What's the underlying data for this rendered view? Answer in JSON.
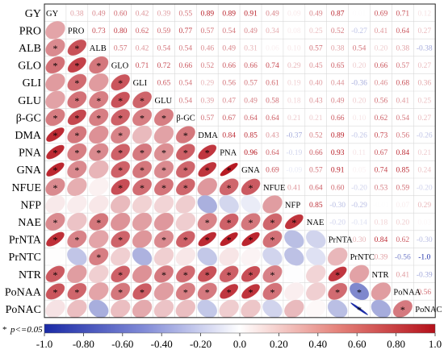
{
  "chart_data": {
    "type": "heatmap",
    "variables": [
      "GY",
      "PRO",
      "ALB",
      "GLO",
      "GLI",
      "GLU",
      "β-GC",
      "DMA",
      "PNA",
      "GNA",
      "NFUE",
      "NFP",
      "NAE",
      "PrNTA",
      "PrNTC",
      "NTR",
      "PoNAA",
      "PoNAC"
    ],
    "upper_values": {
      "GY": {
        "PRO": "0.38",
        "ALB": "0.49",
        "GLO": "0.60",
        "GLI": "0.42",
        "GLU": "0.39",
        "β-GC": "0.55",
        "DMA": "0.89",
        "PNA": "0.89",
        "GNA": "0.91",
        "NFUE": "0.49",
        "NFP": "0.09",
        "NAE": "0.49",
        "PrNTA": "0.87",
        "PrNTC": "0.01",
        "NTR": "0.69",
        "PoNAA": "0.71",
        "PoNAC": "0.12"
      },
      "PRO": {
        "ALB": "0.73",
        "GLO": "0.80",
        "GLI": "0.62",
        "GLU": "0.59",
        "β-GC": "0.77",
        "DMA": "0.57",
        "PNA": "0.54",
        "GNA": "0.49",
        "NFUE": "0.34",
        "NFP": "0.08",
        "NAE": "0.25",
        "PrNTA": "0.52",
        "PrNTC": "-0.27",
        "NTR": "0.41",
        "PoNAA": "0.64",
        "PoNAC": "0.27"
      },
      "ALB": {
        "GLO": "0.57",
        "GLI": "0.42",
        "GLU": "0.54",
        "β-GC": "0.54",
        "DMA": "0.46",
        "PNA": "0.49",
        "GNA": "0.31",
        "NFUE": "0.06",
        "NFP": "0.10",
        "NAE": "0.57",
        "PrNTA": "0.38",
        "PrNTC": "0.54",
        "NTR": "0.20",
        "PoNAA": "0.38",
        "PoNAC": "-0.38"
      },
      "GLO": {
        "GLI": "0.71",
        "GLU": "0.72",
        "β-GC": "0.66",
        "DMA": "0.52",
        "PNA": "0.66",
        "GNA": "0.66",
        "NFUE": "0.74",
        "NFP": "0.29",
        "NAE": "0.45",
        "PrNTA": "0.65",
        "PrNTC": "0.20",
        "NTR": "0.66",
        "PoNAA": "0.57",
        "PoNAC": "0.27"
      },
      "GLI": {
        "GLU": "0.65",
        "β-GC": "0.54",
        "DMA": "0.29",
        "PNA": "0.56",
        "GNA": "0.57",
        "NFUE": "0.61",
        "NFP": "0.19",
        "NAE": "0.40",
        "PrNTA": "0.44",
        "PrNTC": "-0.36",
        "NTR": "0.46",
        "PoNAA": "0.68",
        "PoNAC": "0.36"
      },
      "GLU": {
        "β-GC": "0.54",
        "DMA": "0.39",
        "PNA": "0.47",
        "GNA": "0.49",
        "NFUE": "0.58",
        "NFP": "0.18",
        "NAE": "0.43",
        "PrNTA": "0.49",
        "PrNTC": "0.20",
        "NTR": "0.56",
        "PoNAA": "0.41",
        "PoNAC": "0.25"
      },
      "β-GC": {
        "DMA": "0.57",
        "PNA": "0.67",
        "GNA": "0.64",
        "NFUE": "0.64",
        "NFP": "0.21",
        "NAE": "0.21",
        "PrNTA": "0.66",
        "PrNTC": "0.10",
        "NTR": "0.62",
        "PoNAA": "0.54",
        "PoNAC": "0.27"
      },
      "DMA": {
        "PNA": "0.84",
        "GNA": "0.85",
        "NFUE": "0.43",
        "NFP": "-0.37",
        "NAE": "0.52",
        "PrNTA": "0.89",
        "PrNTC": "-0.26",
        "NTR": "0.73",
        "PoNAA": "0.56",
        "PoNAC": "-0.26"
      },
      "PNA": {
        "GNA": "0.96",
        "NFUE": "0.64",
        "NFP": "-0.19",
        "NAE": "0.66",
        "PrNTA": "0.93",
        "PrNTC": "0.11",
        "NTR": "0.67",
        "PoNAA": "0.84",
        "PoNAC": "0.21"
      },
      "GNA": {
        "NFUE": "0.69",
        "NFP": "-0.09",
        "NAE": "0.57",
        "PrNTA": "0.91",
        "PrNTC": "0.05",
        "NTR": "0.74",
        "PoNAA": "0.85",
        "PoNAC": "0.24"
      },
      "NFUE": {
        "NFP": "0.41",
        "NAE": "0.64",
        "PrNTA": "0.60",
        "PrNTC": "-0.20",
        "NTR": "0.53",
        "PoNAA": "0.59",
        "PoNAC": "-0.20"
      },
      "NFP": {
        "NAE": "0.85",
        "PrNTA": "-0.30",
        "PrNTC": "-0.29",
        "NTR": "-0.01",
        "PoNAA": "0.07",
        "PoNAC": "0.29"
      },
      "NAE": {
        "PrNTA": "-0.20",
        "PrNTC": "-0.14",
        "NTR": "0.18",
        "PoNAA": "0.20",
        "PoNAC": "0.03"
      },
      "PrNTA": {
        "PrNTC": "0.30",
        "NTR": "0.84",
        "PoNAA": "0.62",
        "PoNAC": "-0.30"
      },
      "PrNTC": {
        "NTR": "0.39",
        "PoNAA": "-0.56",
        "PoNAC": "-1.0"
      },
      "NTR": {
        "PoNAA": "0.41",
        "PoNAC": "-0.39"
      },
      "PoNAA": {
        "PoNAC": "0.56"
      }
    },
    "colorbar": {
      "range": [
        -1.0,
        1.0
      ],
      "ticks": [
        "-1.0",
        "-0.80",
        "-0.60",
        "-0.40",
        "-0.20",
        "0.0",
        "0.20",
        "0.40",
        "0.60",
        "0.80",
        "1.0"
      ],
      "colors": {
        "negative": "#1a2aa6",
        "zero": "#ffffff",
        "positive": "#b4101a"
      }
    },
    "significance_marker": "*",
    "legend_note": {
      "symbol": "*",
      "text": "p<=0.05"
    }
  }
}
